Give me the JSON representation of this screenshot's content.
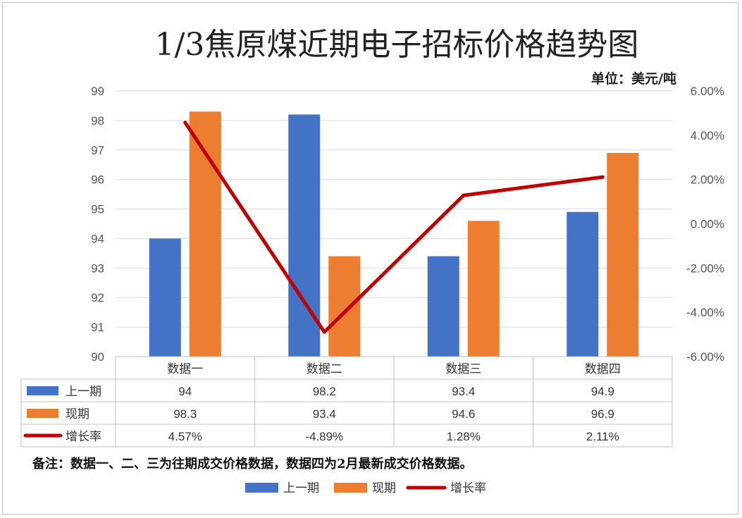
{
  "chart_data": {
    "type": "bar",
    "title": "1/3焦原煤近期电子招标价格趋势图",
    "unit_label": "单位：美元/吨",
    "categories": [
      "数据一",
      "数据二",
      "数据三",
      "数据四"
    ],
    "series": [
      {
        "name": "上一期",
        "type": "bar",
        "color": "#4472c4",
        "values": [
          94,
          98.2,
          93.4,
          94.9
        ],
        "labels": [
          "94",
          "98.2",
          "93.4",
          "94.9"
        ]
      },
      {
        "name": "现期",
        "type": "bar",
        "color": "#ed7d31",
        "values": [
          98.3,
          93.4,
          94.6,
          96.9
        ],
        "labels": [
          "98.3",
          "93.4",
          "94.6",
          "96.9"
        ]
      },
      {
        "name": "增长率",
        "type": "line",
        "axis": "secondary",
        "color": "#c00000",
        "values": [
          4.57,
          -4.89,
          1.28,
          2.11
        ],
        "labels": [
          "4.57%",
          "-4.89%",
          "1.28%",
          "2.11%"
        ]
      }
    ],
    "ylim": [
      90,
      99
    ],
    "y_ticks": [
      "99",
      "98",
      "97",
      "96",
      "95",
      "94",
      "93",
      "92",
      "91",
      "90"
    ],
    "y2lim": [
      -6,
      6
    ],
    "y2_ticks": [
      "6.00%",
      "4.00%",
      "2.00%",
      "0.00%",
      "-2.00%",
      "-4.00%",
      "-6.00%"
    ],
    "grid": true,
    "data_table": true,
    "legend_position": "bottom",
    "note": "备注：数据一、二、三为往期成交价格数据，数据四为2月最新成交价格数据。"
  }
}
